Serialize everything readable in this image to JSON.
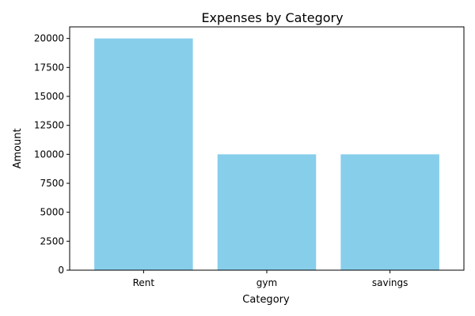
{
  "chart_data": {
    "type": "bar",
    "title": "Expenses by Category",
    "xlabel": "Category",
    "ylabel": "Amount",
    "categories": [
      "Rent",
      "gym",
      "savings"
    ],
    "values": [
      20000,
      10000,
      10000
    ],
    "ylim": [
      0,
      21000
    ],
    "yticks": [
      0,
      2500,
      5000,
      7500,
      10000,
      12500,
      15000,
      17500,
      20000
    ],
    "bar_color": "#87ceeb",
    "grid": false,
    "legend": "none"
  }
}
